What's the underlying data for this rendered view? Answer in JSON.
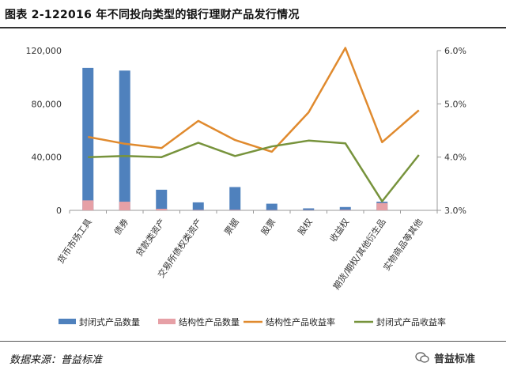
{
  "header": {
    "title": "图表 2-122016 年不同投向类型的银行理财产品发行情况"
  },
  "footer": {
    "source": "数据来源：普益标准",
    "watermark": "普益标准"
  },
  "chart_data": {
    "type": "bar",
    "categories": [
      "货币市场工具",
      "债券",
      "贷款类资产",
      "交易所债权类资产",
      "票据",
      "股票",
      "股权",
      "收益权",
      "期货/期权/其他衍生品",
      "实物商品等其他"
    ],
    "series": [
      {
        "name": "封闭式产品数量",
        "type": "bar",
        "axis": "left",
        "color": "#4f81bd",
        "values": [
          107000,
          105000,
          15500,
          6000,
          17500,
          5000,
          1500,
          2500,
          6500,
          0
        ]
      },
      {
        "name": "结构性产品数量",
        "type": "bar",
        "axis": "left",
        "color": "#e6a0a6",
        "values": [
          7500,
          6500,
          1200,
          300,
          400,
          200,
          200,
          400,
          5500,
          0
        ]
      },
      {
        "name": "结构性产品收益率",
        "type": "line",
        "axis": "right",
        "color": "#e08a2e",
        "values": [
          4.38,
          4.25,
          4.17,
          4.68,
          4.32,
          4.1,
          4.84,
          6.05,
          4.28,
          4.88
        ]
      },
      {
        "name": "封闭式产品收益率",
        "type": "line",
        "axis": "right",
        "color": "#77933c",
        "values": [
          4.0,
          4.02,
          4.0,
          4.27,
          4.02,
          4.2,
          4.31,
          4.26,
          3.17,
          4.04
        ]
      }
    ],
    "y_left": {
      "ylim": [
        0,
        120000
      ],
      "ticks": [
        "0",
        "40,000",
        "80,000",
        "120,000"
      ],
      "tick_values": [
        0,
        40000,
        80000,
        120000
      ]
    },
    "y_right": {
      "ylim": [
        3.0,
        6.0
      ],
      "ticks": [
        "3.0%",
        "4.0%",
        "5.0%",
        "6.0%"
      ],
      "tick_values": [
        3.0,
        4.0,
        5.0,
        6.0
      ]
    },
    "grid": false,
    "legend_position": "bottom"
  }
}
